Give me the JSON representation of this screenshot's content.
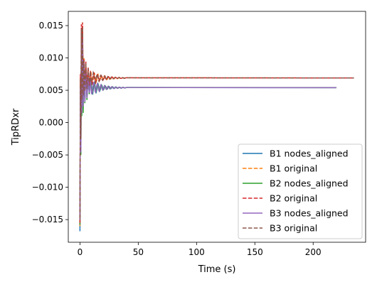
{
  "chart_data": {
    "type": "line",
    "title": "",
    "xlabel": "Time (s)",
    "ylabel": "TipRDxr",
    "xlim": [
      -10,
      245
    ],
    "ylim": [
      -0.0185,
      0.0172
    ],
    "x_ticks": [
      0,
      50,
      100,
      150,
      200
    ],
    "x_tick_labels": [
      "0",
      "50",
      "100",
      "150",
      "200"
    ],
    "y_ticks": [
      -0.015,
      -0.01,
      -0.005,
      0.0,
      0.005,
      0.01,
      0.015
    ],
    "y_tick_labels": [
      "−0.015",
      "−0.010",
      "−0.005",
      "0.000",
      "0.005",
      "0.010",
      "0.015"
    ],
    "grid": false,
    "legend_position": "lower-right",
    "series": [
      {
        "name": "B1 nodes_aligned",
        "color": "#1f77b4",
        "dash": "solid",
        "end_time": 220,
        "steady": 0.0054,
        "offset": 0.0,
        "phase": 0.0,
        "transient": [
          [
            0,
            -0.0168
          ],
          [
            0.4,
            0.006
          ],
          [
            0.8,
            -0.004
          ],
          [
            1.2,
            0.0125
          ],
          [
            1.6,
            0.002
          ],
          [
            2.2,
            0.014
          ],
          [
            2.8,
            0.003
          ],
          [
            3.4,
            0.0095
          ],
          [
            4.2,
            0.0035
          ],
          [
            5,
            0.008
          ],
          [
            6,
            0.004
          ],
          [
            7,
            0.007
          ],
          [
            8,
            0.0045
          ],
          [
            9,
            0.0066
          ]
        ]
      },
      {
        "name": "B1 original",
        "color": "#ff7f0e",
        "dash": "dashed",
        "end_time": 235,
        "steady": 0.0069,
        "offset": 0.0,
        "phase": 0.3,
        "transient": [
          [
            0,
            -0.016
          ],
          [
            0.4,
            0.007
          ],
          [
            0.8,
            -0.003
          ],
          [
            1.2,
            0.014
          ],
          [
            1.6,
            0.003
          ],
          [
            2.2,
            0.015
          ],
          [
            2.8,
            0.004
          ],
          [
            3.4,
            0.01
          ],
          [
            4.2,
            0.0045
          ],
          [
            5,
            0.009
          ],
          [
            6,
            0.005
          ],
          [
            7,
            0.0082
          ],
          [
            8,
            0.0056
          ],
          [
            9,
            0.0078
          ]
        ]
      },
      {
        "name": "B2 nodes_aligned",
        "color": "#2ca02c",
        "dash": "solid",
        "end_time": 220,
        "steady": 0.0054,
        "offset": 0.0002,
        "phase": 0.6,
        "transient": [
          [
            0,
            -0.0158
          ],
          [
            0.4,
            0.005
          ],
          [
            0.8,
            -0.005
          ],
          [
            1.2,
            0.013
          ],
          [
            1.6,
            0.001
          ],
          [
            2.2,
            0.0135
          ],
          [
            2.8,
            0.0015
          ],
          [
            3.4,
            0.009
          ],
          [
            4.2,
            0.003
          ],
          [
            5,
            0.0085
          ],
          [
            6,
            0.0035
          ],
          [
            7,
            0.0072
          ],
          [
            8,
            0.0044
          ],
          [
            9,
            0.0065
          ]
        ]
      },
      {
        "name": "B2 original",
        "color": "#d62728",
        "dash": "dashed",
        "end_time": 235,
        "steady": 0.0069,
        "offset": 0.0002,
        "phase": 0.9,
        "transient": [
          [
            0,
            -0.0155
          ],
          [
            0.4,
            0.0075
          ],
          [
            0.8,
            -0.002
          ],
          [
            1.2,
            0.0152
          ],
          [
            1.6,
            0.004
          ],
          [
            2.2,
            0.0155
          ],
          [
            2.8,
            0.0045
          ],
          [
            3.4,
            0.0098
          ],
          [
            4.2,
            0.005
          ],
          [
            5,
            0.0095
          ],
          [
            6,
            0.0055
          ],
          [
            7,
            0.0085
          ],
          [
            8,
            0.0058
          ],
          [
            9,
            0.008
          ]
        ]
      },
      {
        "name": "B3 nodes_aligned",
        "color": "#9467bd",
        "dash": "solid",
        "end_time": 220,
        "steady": 0.0054,
        "offset": -0.0001,
        "phase": 1.2,
        "transient": [
          [
            0,
            -0.015
          ],
          [
            0.4,
            0.0055
          ],
          [
            0.8,
            -0.0045
          ],
          [
            1.2,
            0.012
          ],
          [
            1.6,
            0.0015
          ],
          [
            2.2,
            0.013
          ],
          [
            2.8,
            0.0025
          ],
          [
            3.4,
            0.0092
          ],
          [
            4.2,
            0.0032
          ],
          [
            5,
            0.0078
          ],
          [
            6,
            0.0038
          ],
          [
            7,
            0.007
          ],
          [
            8,
            0.0046
          ],
          [
            9,
            0.0064
          ]
        ]
      },
      {
        "name": "B3 original",
        "color": "#8c564b",
        "dash": "dashed",
        "end_time": 235,
        "steady": 0.0069,
        "offset": -0.0001,
        "phase": 1.5,
        "transient": [
          [
            0,
            -0.0148
          ],
          [
            0.4,
            0.0068
          ],
          [
            0.8,
            -0.0025
          ],
          [
            1.2,
            0.0145
          ],
          [
            1.6,
            0.0035
          ],
          [
            2.2,
            0.0148
          ],
          [
            2.8,
            0.0042
          ],
          [
            3.4,
            0.0096
          ],
          [
            4.2,
            0.0048
          ],
          [
            5,
            0.0092
          ],
          [
            6,
            0.0052
          ],
          [
            7,
            0.0084
          ],
          [
            8,
            0.0057
          ],
          [
            9,
            0.0079
          ]
        ]
      }
    ]
  }
}
